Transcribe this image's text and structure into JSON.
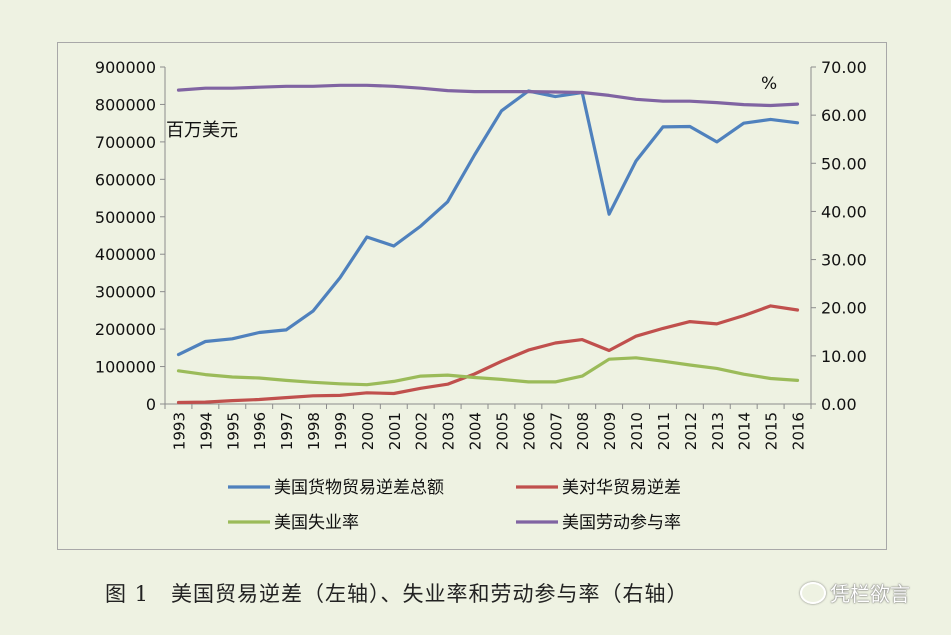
{
  "chart_data": {
    "type": "line",
    "x": [
      "1993",
      "1994",
      "1995",
      "1996",
      "1997",
      "1998",
      "1999",
      "2000",
      "2001",
      "2002",
      "2003",
      "2004",
      "2005",
      "2006",
      "2007",
      "2008",
      "2009",
      "2010",
      "2011",
      "2012",
      "2013",
      "2014",
      "2015",
      "2016"
    ],
    "left_axis": {
      "unit_label": "百万美元",
      "ylim": [
        0,
        900000
      ],
      "ticks": [
        "0",
        "100000",
        "200000",
        "300000",
        "400000",
        "500000",
        "600000",
        "700000",
        "800000",
        "900000"
      ]
    },
    "right_axis": {
      "unit_label": "%",
      "ylim": [
        0,
        70
      ],
      "ticks": [
        "0.00",
        "10.00",
        "20.00",
        "30.00",
        "40.00",
        "50.00",
        "60.00",
        "70.00"
      ]
    },
    "series": [
      {
        "name": "美国货物贸易逆差总额",
        "axis": "left",
        "color": "#4f81bd",
        "values": [
          132000,
          167000,
          174000,
          191000,
          198000,
          248000,
          337000,
          446000,
          422000,
          475000,
          540000,
          665000,
          783000,
          836000,
          821000,
          832000,
          507000,
          649000,
          740000,
          741000,
          700000,
          750000,
          760000,
          751000
        ]
      },
      {
        "name": "美对华贸易逆差",
        "axis": "left",
        "color": "#c0504d",
        "values": [
          4000,
          5000,
          9000,
          12000,
          17000,
          22000,
          23000,
          30000,
          28000,
          42000,
          53000,
          80000,
          114000,
          144000,
          163000,
          172000,
          143000,
          181000,
          202000,
          220000,
          214000,
          236000,
          262000,
          251000
        ]
      },
      {
        "name": "美国失业率",
        "axis": "right",
        "color": "#9bbb59",
        "values": [
          6.9,
          6.1,
          5.6,
          5.4,
          4.9,
          4.5,
          4.2,
          4.0,
          4.7,
          5.8,
          6.0,
          5.5,
          5.1,
          4.6,
          4.6,
          5.8,
          9.3,
          9.6,
          8.9,
          8.1,
          7.4,
          6.2,
          5.3,
          4.9
        ]
      },
      {
        "name": "美国劳动参与率",
        "axis": "right",
        "color": "#8064a2",
        "values": [
          65.2,
          65.6,
          65.6,
          65.8,
          66.0,
          66.0,
          66.2,
          66.2,
          66.0,
          65.6,
          65.1,
          64.9,
          64.9,
          64.9,
          64.8,
          64.7,
          64.1,
          63.3,
          62.9,
          62.9,
          62.6,
          62.2,
          62.0,
          62.3
        ]
      }
    ]
  },
  "caption": "图 1　美国贸易逆差（左轴）、失业率和劳动参与率（右轴）",
  "watermark": "凭栏欲言"
}
